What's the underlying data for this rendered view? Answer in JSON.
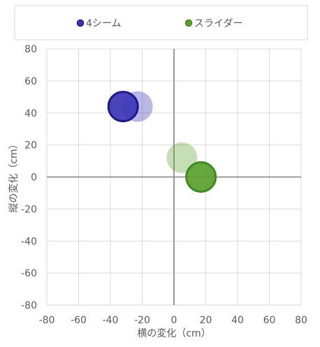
{
  "chart_data": {
    "type": "bubble",
    "title": "",
    "xlabel": "横の変化（cm）",
    "ylabel": "縦の変化（cm）",
    "xlim": [
      -80,
      80
    ],
    "ylim": [
      -80,
      80
    ],
    "xticks": [
      -80,
      -60,
      -40,
      -20,
      0,
      20,
      40,
      60,
      80
    ],
    "yticks": [
      -80,
      -60,
      -40,
      -20,
      0,
      20,
      40,
      60,
      80
    ],
    "grid": true,
    "legend_position": "top",
    "series": [
      {
        "name": "4シーム",
        "color": "#1f1a8c",
        "fill": "#3b34b5",
        "points": [
          {
            "x": -32,
            "y": 44,
            "emphasis": "primary"
          },
          {
            "x": -23,
            "y": 44,
            "emphasis": "faded"
          }
        ]
      },
      {
        "name": "スライダー",
        "color": "#3f8a1f",
        "fill": "#5aa02c",
        "points": [
          {
            "x": 17,
            "y": 0,
            "emphasis": "primary"
          },
          {
            "x": 5,
            "y": 12,
            "emphasis": "faded"
          }
        ]
      }
    ]
  }
}
